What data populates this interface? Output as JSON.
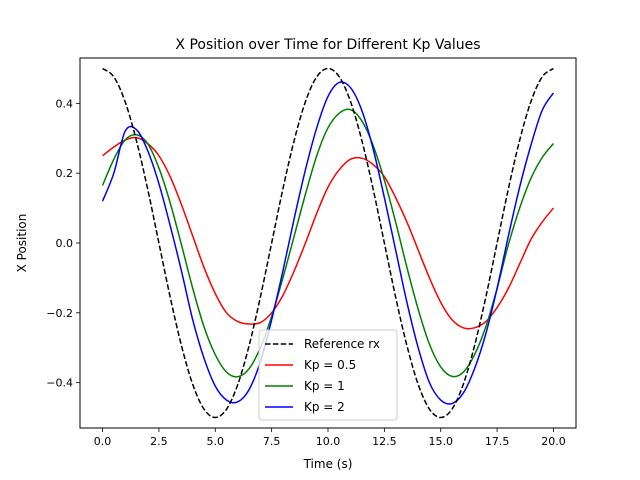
{
  "chart_data": {
    "type": "line",
    "title": "X Position over Time for Different Kp Values",
    "xlabel": "Time (s)",
    "ylabel": "X Position",
    "xlim": [
      -1.0,
      21.0
    ],
    "ylim": [
      -0.53,
      0.53
    ],
    "grid": false,
    "legend_position": "bottom-center",
    "x_ticks": [
      0,
      2.5,
      5,
      7.5,
      10,
      12.5,
      15,
      17.5,
      20
    ],
    "x_tick_labels": [
      "0.0",
      "2.5",
      "5.0",
      "7.5",
      "10.0",
      "12.5",
      "15.0",
      "17.5",
      "20.0"
    ],
    "y_ticks": [
      -0.4,
      -0.2,
      0,
      0.2,
      0.4
    ],
    "y_tick_labels": [
      "−0.4",
      "−0.2",
      "0.0",
      "0.2",
      "0.4"
    ],
    "series": [
      {
        "name": "Reference rx",
        "color": "#000000",
        "dash": "dashed",
        "x": [
          0,
          0.5,
          1,
          1.5,
          2,
          2.5,
          3,
          3.5,
          4,
          4.5,
          5,
          5.5,
          6,
          6.5,
          7,
          7.5,
          8,
          8.5,
          9,
          9.5,
          10,
          10.5,
          11,
          11.5,
          12,
          12.5,
          13,
          13.5,
          14,
          14.5,
          15,
          15.5,
          16,
          16.5,
          17,
          17.5,
          18,
          18.5,
          19,
          19.5,
          20
        ],
        "y": [
          0.5,
          0.476,
          0.405,
          0.294,
          0.155,
          0.0,
          -0.155,
          -0.294,
          -0.405,
          -0.476,
          -0.5,
          -0.476,
          -0.405,
          -0.294,
          -0.155,
          0.0,
          0.155,
          0.294,
          0.405,
          0.476,
          0.5,
          0.476,
          0.405,
          0.294,
          0.155,
          0.0,
          -0.155,
          -0.294,
          -0.405,
          -0.476,
          -0.5,
          -0.476,
          -0.405,
          -0.294,
          -0.155,
          0.0,
          0.155,
          0.294,
          0.405,
          0.476,
          0.5
        ]
      },
      {
        "name": "Kp = 0.5",
        "color": "#ff0000",
        "dash": "solid",
        "x": [
          0,
          0.5,
          1,
          1.5,
          2,
          2.5,
          3,
          3.5,
          4,
          4.5,
          5,
          5.5,
          6,
          6.5,
          7,
          7.5,
          8,
          8.5,
          9,
          9.5,
          10,
          10.5,
          11,
          11.5,
          12,
          12.5,
          13,
          13.5,
          14,
          14.5,
          15,
          15.5,
          16,
          16.5,
          17,
          17.5,
          18,
          18.5,
          19,
          19.5,
          20
        ],
        "y": [
          0.25,
          0.275,
          0.295,
          0.302,
          0.285,
          0.25,
          0.19,
          0.11,
          0.02,
          -0.07,
          -0.145,
          -0.2,
          -0.225,
          -0.232,
          -0.228,
          -0.2,
          -0.15,
          -0.08,
          0.0,
          0.085,
          0.16,
          0.21,
          0.24,
          0.243,
          0.225,
          0.19,
          0.13,
          0.06,
          -0.02,
          -0.1,
          -0.17,
          -0.22,
          -0.243,
          -0.243,
          -0.225,
          -0.185,
          -0.13,
          -0.06,
          0.01,
          0.06,
          0.1
        ]
      },
      {
        "name": "Kp = 1",
        "color": "#008000",
        "dash": "solid",
        "x": [
          0,
          0.5,
          1,
          1.5,
          2,
          2.5,
          3,
          3.5,
          4,
          4.5,
          5,
          5.5,
          6,
          6.5,
          7,
          7.5,
          8,
          8.5,
          9,
          9.5,
          10,
          10.5,
          11,
          11.5,
          12,
          12.5,
          13,
          13.5,
          14,
          14.5,
          15,
          15.5,
          16,
          16.5,
          17,
          17.5,
          18,
          18.5,
          19,
          19.5,
          20
        ],
        "y": [
          0.165,
          0.24,
          0.295,
          0.31,
          0.285,
          0.215,
          0.115,
          -0.005,
          -0.13,
          -0.24,
          -0.32,
          -0.37,
          -0.383,
          -0.36,
          -0.3,
          -0.21,
          -0.1,
          0.02,
          0.14,
          0.25,
          0.33,
          0.372,
          0.382,
          0.35,
          0.28,
          0.18,
          0.06,
          -0.07,
          -0.19,
          -0.29,
          -0.355,
          -0.382,
          -0.37,
          -0.32,
          -0.24,
          -0.13,
          -0.005,
          0.1,
          0.185,
          0.245,
          0.285
        ]
      },
      {
        "name": "Kp = 2",
        "color": "#0000ff",
        "dash": "solid",
        "x": [
          0,
          0.5,
          1,
          1.5,
          2,
          2.5,
          3,
          3.5,
          4,
          4.5,
          5,
          5.5,
          6,
          6.5,
          7,
          7.5,
          8,
          8.5,
          9,
          9.5,
          10,
          10.5,
          11,
          11.5,
          12,
          12.5,
          13,
          13.5,
          14,
          14.5,
          15,
          15.5,
          16,
          16.5,
          17,
          17.5,
          18,
          18.5,
          19,
          19.5,
          20
        ],
        "y": [
          0.12,
          0.2,
          0.32,
          0.325,
          0.265,
          0.17,
          0.05,
          -0.08,
          -0.22,
          -0.33,
          -0.41,
          -0.45,
          -0.455,
          -0.42,
          -0.34,
          -0.22,
          -0.08,
          0.07,
          0.21,
          0.33,
          0.42,
          0.46,
          0.445,
          0.38,
          0.27,
          0.13,
          -0.02,
          -0.17,
          -0.3,
          -0.4,
          -0.45,
          -0.46,
          -0.43,
          -0.36,
          -0.26,
          -0.13,
          0.02,
          0.16,
          0.28,
          0.38,
          0.43
        ]
      }
    ]
  }
}
